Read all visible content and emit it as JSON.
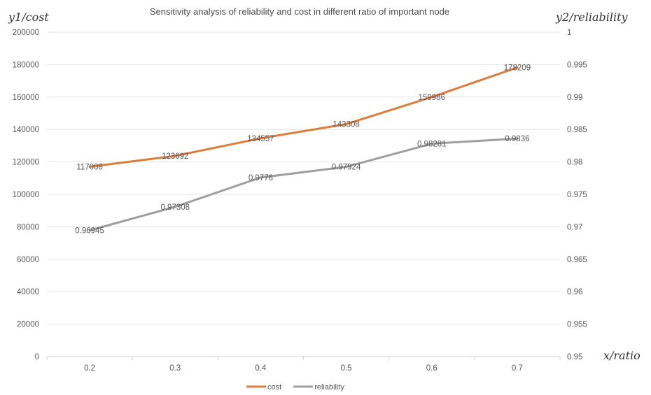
{
  "chart_data": {
    "type": "line",
    "title": "Sensitivity analysis of reliability and cost in different ratio of important node",
    "xlabel": "x/ratio",
    "ylabel": "y1/cost",
    "y2label": "y2/reliability",
    "categories": [
      "0.2",
      "0.3",
      "0.4",
      "0.5",
      "0.6",
      "0.7"
    ],
    "ylim": [
      0,
      200000
    ],
    "y2lim": [
      0.95,
      1
    ],
    "yticks": [
      "0",
      "20000",
      "40000",
      "60000",
      "80000",
      "100000",
      "120000",
      "140000",
      "160000",
      "180000",
      "200000"
    ],
    "y2ticks": [
      "0.95",
      "0.955",
      "0.96",
      "0.965",
      "0.97",
      "0.975",
      "0.98",
      "0.985",
      "0.99",
      "0.995",
      "1"
    ],
    "grid": true,
    "legend_position": "bottom",
    "series": [
      {
        "name": "cost",
        "axis": "y1",
        "color": "#E07B39",
        "values": [
          117008,
          123692,
          134557,
          143308,
          159986,
          178209
        ],
        "labels": [
          "117008",
          "123692",
          "134557",
          "143308",
          "159986",
          "178209"
        ]
      },
      {
        "name": "reliability",
        "axis": "y2",
        "color": "#9E9E9E",
        "values": [
          0.96945,
          0.97308,
          0.9776,
          0.97924,
          0.98281,
          0.9836
        ],
        "labels": [
          "0.96945",
          "0.97308",
          "0.9776",
          "0.97924",
          "0.98281",
          "0.9836"
        ]
      }
    ]
  }
}
